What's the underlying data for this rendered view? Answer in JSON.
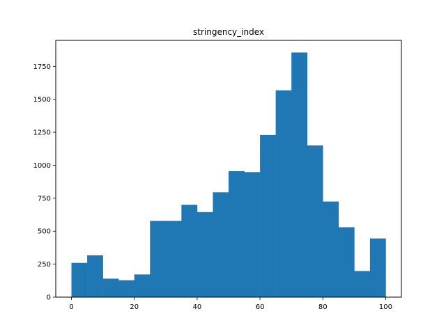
{
  "chart_data": {
    "type": "bar",
    "title": "stringency_index",
    "xlabel": "",
    "ylabel": "",
    "bins": [
      {
        "x0": 0,
        "x1": 5,
        "count": 260
      },
      {
        "x0": 5,
        "x1": 10,
        "count": 317
      },
      {
        "x0": 10,
        "x1": 15,
        "count": 140
      },
      {
        "x0": 15,
        "x1": 20,
        "count": 128
      },
      {
        "x0": 20,
        "x1": 25,
        "count": 172
      },
      {
        "x0": 25,
        "x1": 30,
        "count": 578
      },
      {
        "x0": 30,
        "x1": 35,
        "count": 578
      },
      {
        "x0": 35,
        "x1": 40,
        "count": 700
      },
      {
        "x0": 40,
        "x1": 45,
        "count": 645
      },
      {
        "x0": 45,
        "x1": 50,
        "count": 795
      },
      {
        "x0": 50,
        "x1": 55,
        "count": 955
      },
      {
        "x0": 55,
        "x1": 60,
        "count": 948
      },
      {
        "x0": 60,
        "x1": 65,
        "count": 1230
      },
      {
        "x0": 65,
        "x1": 70,
        "count": 1568
      },
      {
        "x0": 70,
        "x1": 75,
        "count": 1855
      },
      {
        "x0": 75,
        "x1": 80,
        "count": 1150
      },
      {
        "x0": 80,
        "x1": 85,
        "count": 725
      },
      {
        "x0": 85,
        "x1": 90,
        "count": 530
      },
      {
        "x0": 90,
        "x1": 95,
        "count": 198
      },
      {
        "x0": 95,
        "x1": 100,
        "count": 445
      }
    ],
    "xlim": [
      -5,
      105
    ],
    "ylim": [
      0,
      1947
    ],
    "xticks": [
      0,
      20,
      40,
      60,
      80,
      100
    ],
    "yticks": [
      0,
      250,
      500,
      750,
      1000,
      1250,
      1500,
      1750
    ],
    "bar_color": "#1f77b4",
    "grid": false
  }
}
